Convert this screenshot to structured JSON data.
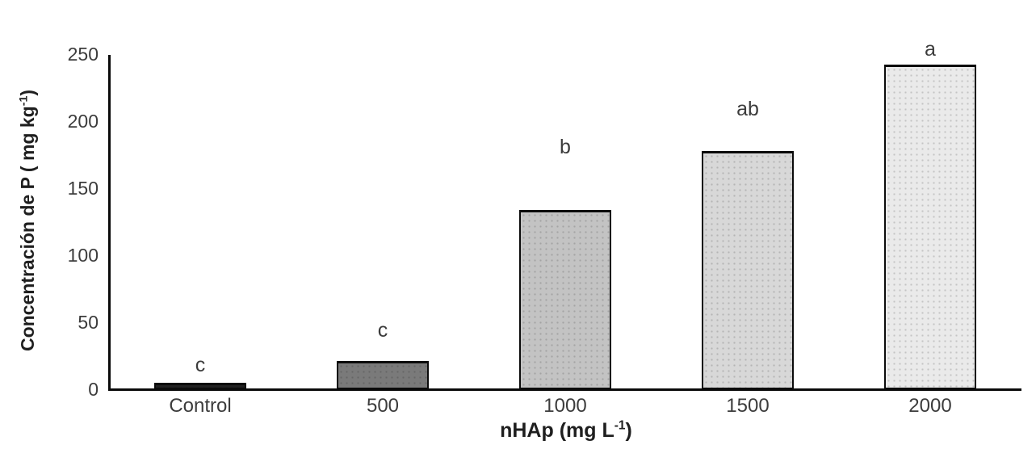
{
  "chart_data": {
    "type": "bar",
    "title": "",
    "categories": [
      "Control",
      "500",
      "1000",
      "1500",
      "2000"
    ],
    "values": [
      5,
      21,
      134,
      178,
      242
    ],
    "significance_letters": [
      "c",
      "c",
      "b",
      "ab",
      "a"
    ],
    "bar_colors": [
      "#212121",
      "#7a7a7a",
      "#c3c3c3",
      "#d8d8d8",
      "#eaeaea"
    ],
    "bar_border_color": "#0b0b0b",
    "xlabel": "nHAp (mg L⁻¹)",
    "ylabel": "Concentración de P ( mg kg⁻¹)",
    "ylim": [
      0,
      250
    ],
    "yticks": [
      0,
      50,
      100,
      150,
      200,
      250
    ],
    "grid": false,
    "legend": "none"
  },
  "axes": {
    "y_label_prefix": "Concentración de P ( mg kg",
    "y_label_sup": "-1",
    "y_label_suffix": ")",
    "x_label_prefix": "nHAp (mg L",
    "x_label_sup": "-1",
    "x_label_suffix": ")"
  }
}
